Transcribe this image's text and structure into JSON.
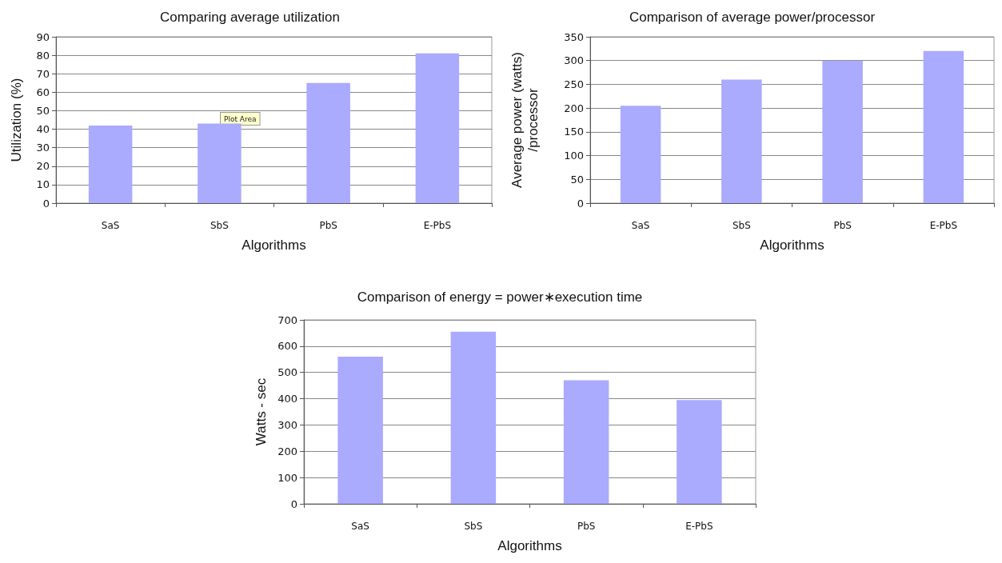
{
  "chart_data": [
    {
      "type": "bar",
      "title": "Comparing average utilization",
      "xlabel": "Algorithms",
      "ylabel": "Utilization (%)",
      "categories": [
        "SaS",
        "SbS",
        "PbS",
        "E-PbS"
      ],
      "values": [
        42,
        43,
        65,
        81
      ],
      "color": "#aaaaff",
      "ylim": [
        0,
        90
      ],
      "yticks": [
        0,
        10,
        20,
        30,
        40,
        50,
        60,
        70,
        80,
        90
      ],
      "grid": "y",
      "annotations": [
        "Plot Area"
      ]
    },
    {
      "type": "bar",
      "title": "Comparison of average power/processor",
      "xlabel": "Algorithms",
      "ylabel": "Average power (watts)\n/processor",
      "categories": [
        "SaS",
        "SbS",
        "PbS",
        "E-PbS"
      ],
      "values": [
        205,
        260,
        300,
        320
      ],
      "color": "#aaaaff",
      "ylim": [
        0,
        350
      ],
      "yticks": [
        0,
        50,
        100,
        150,
        200,
        250,
        300,
        350
      ],
      "grid": "y"
    },
    {
      "type": "bar",
      "title": "Comparison of energy = power∗execution time",
      "xlabel": "Algorithms",
      "ylabel": "Watts - sec",
      "categories": [
        "SaS",
        "SbS",
        "PbS",
        "E-PbS"
      ],
      "values": [
        560,
        655,
        470,
        395
      ],
      "color": "#aaaaff",
      "ylim": [
        0,
        700
      ],
      "yticks": [
        0,
        100,
        200,
        300,
        400,
        500,
        600,
        700
      ],
      "grid": "y"
    }
  ]
}
